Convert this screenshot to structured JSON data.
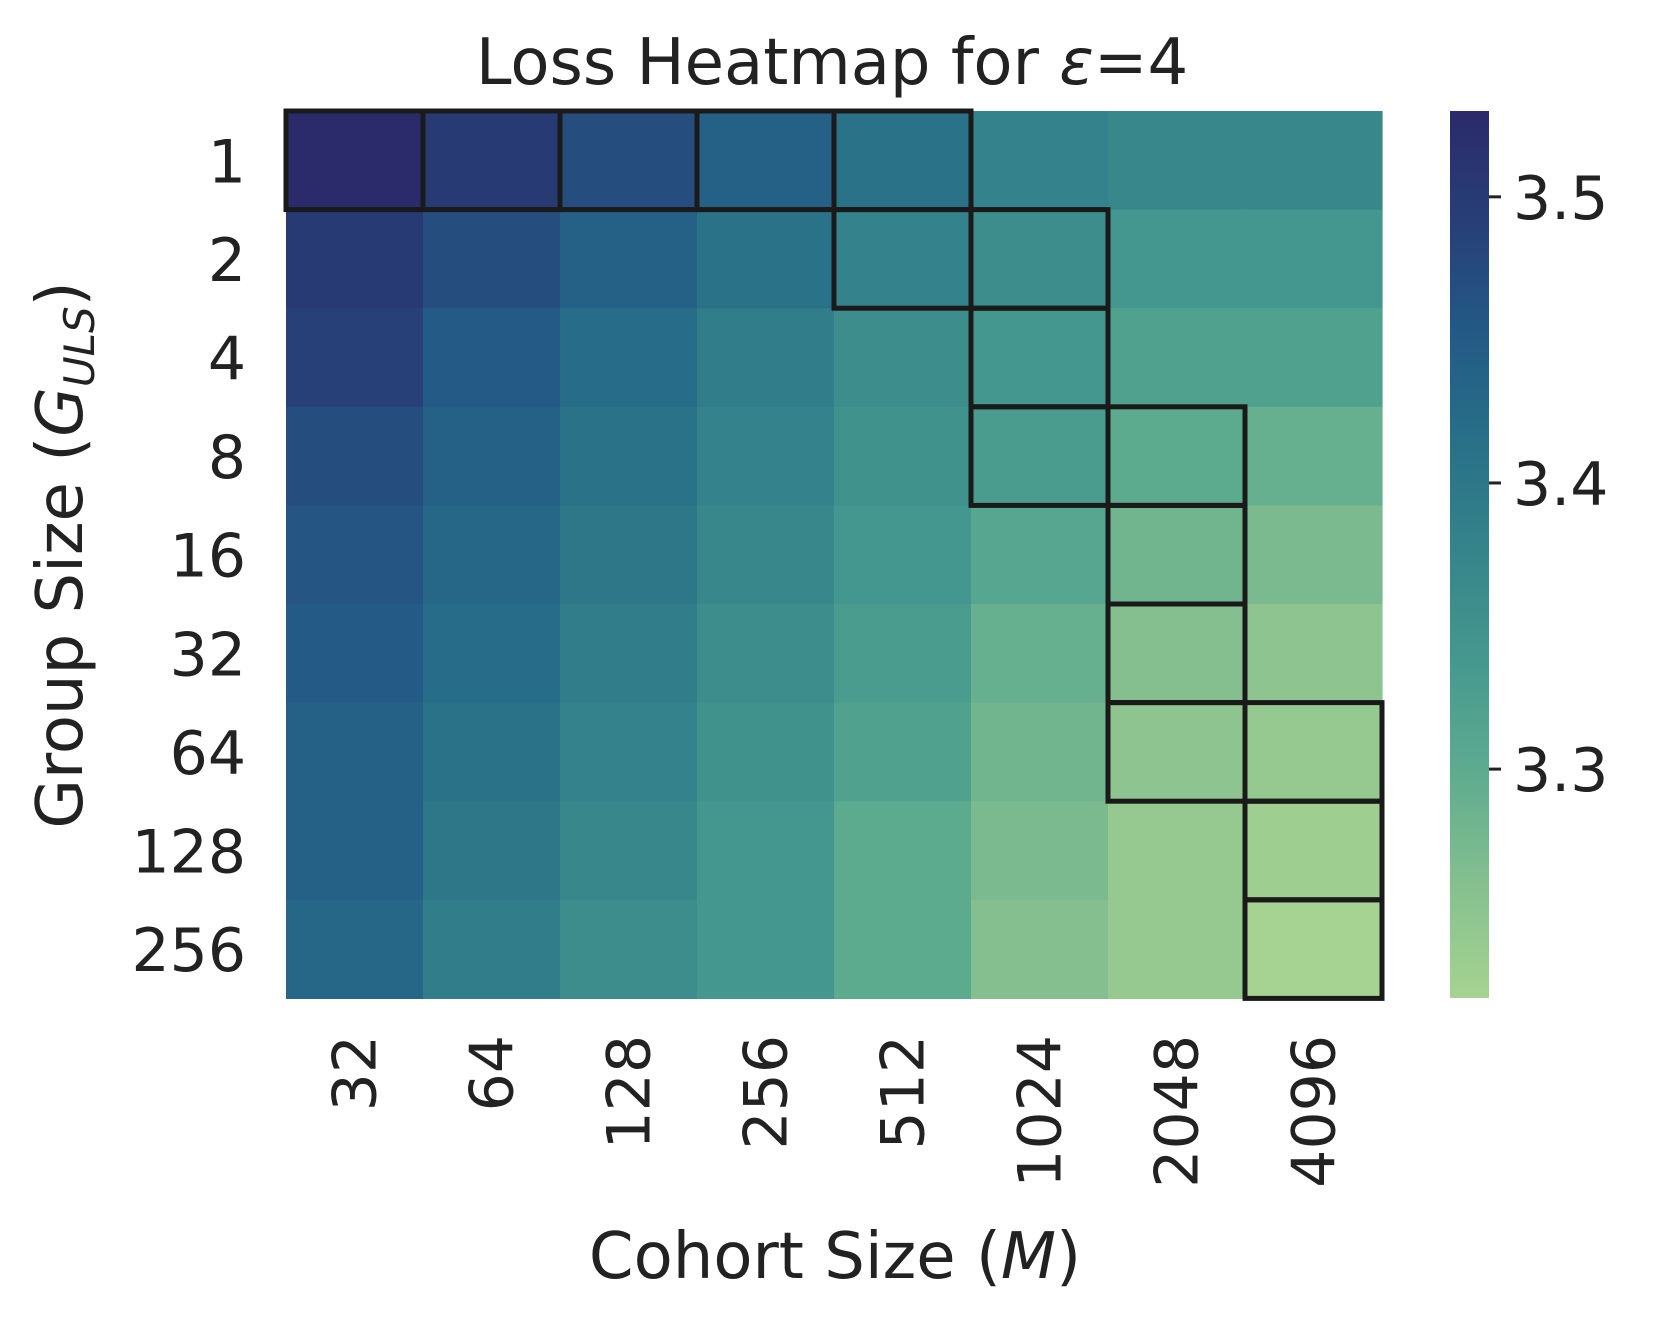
{
  "chart_data": {
    "type": "heatmap",
    "title_prefix": "Loss Heatmap for ",
    "title_symbol": "ε",
    "title_suffix": "=4",
    "xlabel_prefix": "Cohort Size (",
    "xlabel_symbol": "M",
    "xlabel_suffix": ")",
    "ylabel_prefix": "Group Size (",
    "ylabel_symbol": "G",
    "ylabel_subscript": "ULS",
    "ylabel_suffix": ")",
    "x_categories": [
      "32",
      "64",
      "128",
      "256",
      "512",
      "1024",
      "2048",
      "4096"
    ],
    "y_categories": [
      "1",
      "2",
      "4",
      "8",
      "16",
      "32",
      "64",
      "128",
      "256"
    ],
    "values": [
      [
        3.53,
        3.5,
        3.47,
        3.44,
        3.41,
        3.38,
        3.37,
        3.37
      ],
      [
        3.5,
        3.47,
        3.44,
        3.41,
        3.38,
        3.36,
        3.34,
        3.34
      ],
      [
        3.49,
        3.45,
        3.42,
        3.39,
        3.36,
        3.34,
        3.32,
        3.32
      ],
      [
        3.47,
        3.44,
        3.41,
        3.38,
        3.35,
        3.33,
        3.3,
        3.29
      ],
      [
        3.46,
        3.43,
        3.4,
        3.37,
        3.34,
        3.31,
        3.28,
        3.27
      ],
      [
        3.45,
        3.42,
        3.39,
        3.36,
        3.33,
        3.29,
        3.26,
        3.25
      ],
      [
        3.44,
        3.41,
        3.38,
        3.35,
        3.32,
        3.28,
        3.25,
        3.24
      ],
      [
        3.44,
        3.4,
        3.37,
        3.34,
        3.3,
        3.27,
        3.24,
        3.23
      ],
      [
        3.43,
        3.39,
        3.36,
        3.34,
        3.3,
        3.26,
        3.24,
        3.22
      ]
    ],
    "highlighted_cells": [
      [
        0,
        0
      ],
      [
        0,
        1
      ],
      [
        0,
        2
      ],
      [
        0,
        3
      ],
      [
        0,
        4
      ],
      [
        1,
        4
      ],
      [
        1,
        5
      ],
      [
        2,
        5
      ],
      [
        3,
        5
      ],
      [
        3,
        6
      ],
      [
        4,
        6
      ],
      [
        5,
        6
      ],
      [
        6,
        6
      ],
      [
        6,
        7
      ],
      [
        7,
        7
      ],
      [
        8,
        7
      ]
    ],
    "colorbar": {
      "vmin": 3.22,
      "vmax": 3.53,
      "ticks": [
        3.3,
        3.4,
        3.5
      ],
      "tick_labels": [
        "3.3",
        "3.4",
        "3.5"
      ]
    },
    "colormap": [
      "#a6d391",
      "#86c08f",
      "#5fac8f",
      "#46998e",
      "#36858b",
      "#287088",
      "#235a86",
      "#273f76",
      "#2b2a6b"
    ],
    "grid": false,
    "legend": "colorbar-right"
  }
}
